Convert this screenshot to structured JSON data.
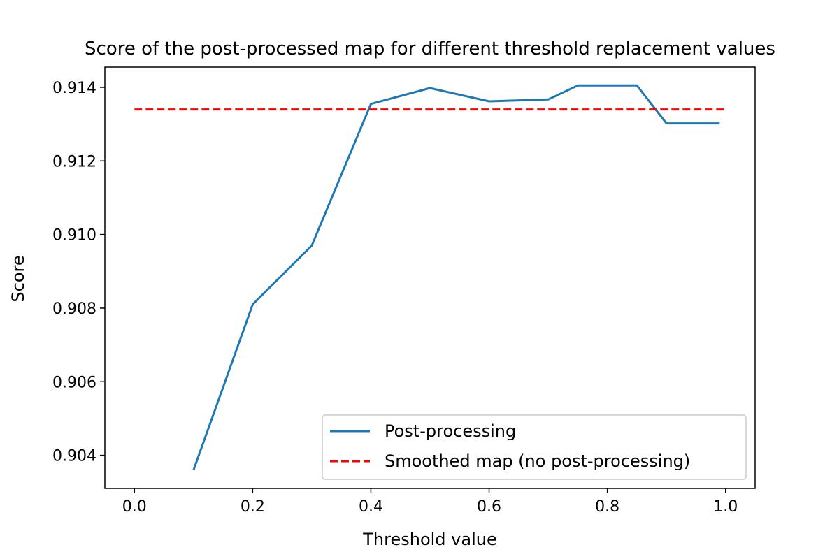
{
  "chart_data": {
    "type": "line",
    "title": "Score of the post-processed map for different threshold replacement values",
    "xlabel": "Threshold value",
    "ylabel": "Score",
    "xlim": [
      -0.05,
      1.05
    ],
    "ylim": [
      0.9031,
      0.91455
    ],
    "xticks": [
      0.0,
      0.2,
      0.4,
      0.6,
      0.8,
      1.0
    ],
    "xtick_labels": [
      "0.0",
      "0.2",
      "0.4",
      "0.6",
      "0.8",
      "1.0"
    ],
    "yticks": [
      0.904,
      0.906,
      0.908,
      0.91,
      0.912,
      0.914
    ],
    "ytick_labels": [
      "0.904",
      "0.906",
      "0.908",
      "0.910",
      "0.912",
      "0.914"
    ],
    "grid": false,
    "legend_position": "lower-right",
    "series": [
      {
        "name": "Post-processing",
        "color": "#1f77b4",
        "style": "solid",
        "x": [
          0.1,
          0.2,
          0.3,
          0.4,
          0.5,
          0.6,
          0.7,
          0.75,
          0.8,
          0.85,
          0.9,
          0.99
        ],
        "y": [
          0.9036,
          0.9081,
          0.9097,
          0.91355,
          0.91398,
          0.91362,
          0.91367,
          0.91405,
          0.91405,
          0.91405,
          0.91302,
          0.91302
        ]
      },
      {
        "name": "Smoothed map (no post-processing)",
        "color": "#ff0000",
        "style": "dashed",
        "x": [
          0.0,
          1.0
        ],
        "y": [
          0.9134,
          0.9134
        ]
      }
    ]
  }
}
